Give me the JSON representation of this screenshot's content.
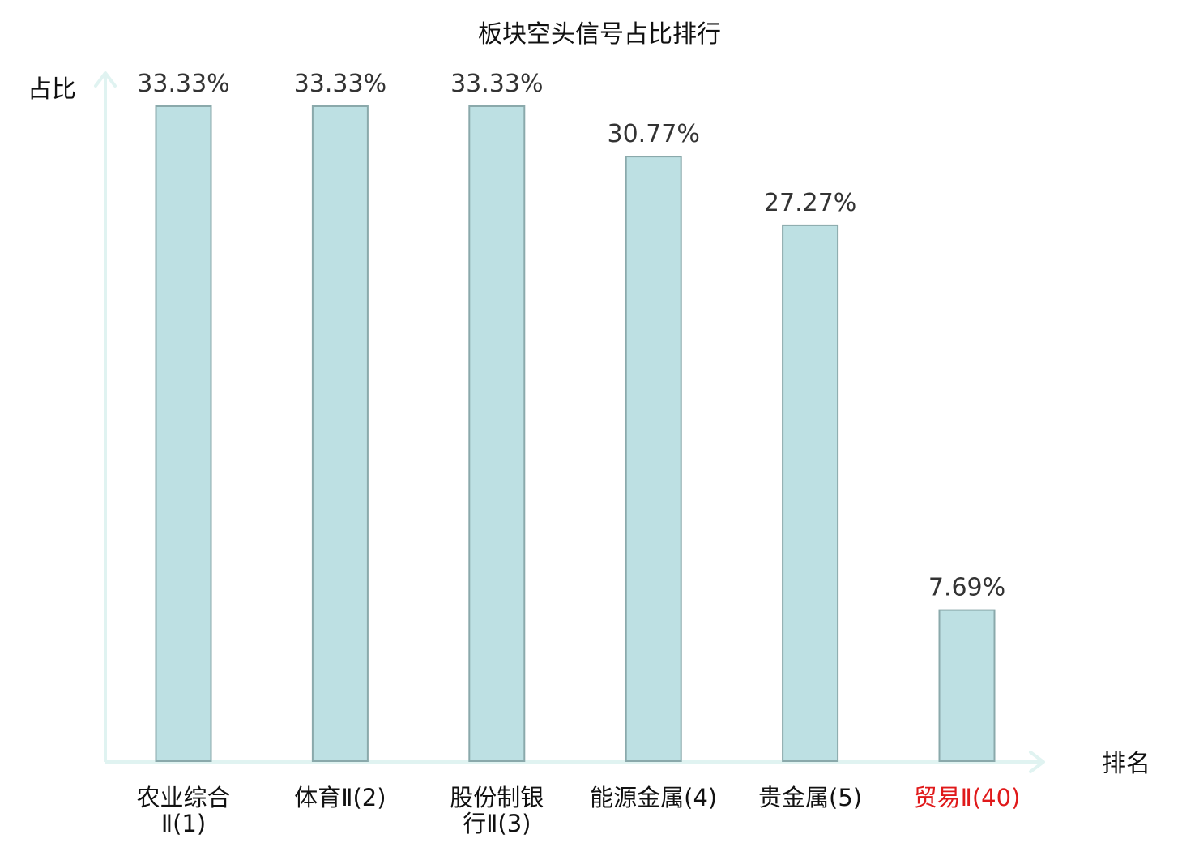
{
  "chart_data": {
    "type": "bar",
    "title": "板块空头信号占比排行",
    "xlabel": "排名",
    "ylabel": "占比",
    "categories": [
      [
        "农业综合",
        "Ⅱ(1)"
      ],
      [
        "体育Ⅱ(2)"
      ],
      [
        "股份制银",
        "行Ⅱ(3)"
      ],
      [
        "能源金属(4)"
      ],
      [
        "贵金属(5)"
      ],
      [
        "贸易Ⅱ(40)"
      ]
    ],
    "values": [
      33.33,
      33.33,
      33.33,
      30.77,
      27.27,
      7.69
    ],
    "value_labels": [
      "33.33%",
      "33.33%",
      "33.33%",
      "30.77%",
      "27.27%",
      "7.69%"
    ],
    "highlight_index": 5,
    "ylim": [
      0,
      33.33
    ],
    "grid": false,
    "legend": "none",
    "colors": {
      "bar_fill": "#bde0e3",
      "bar_stroke": "#8aa9ab",
      "axis": "#e0f3f1",
      "category_text": "#111111",
      "highlight_text": "#e0191a"
    }
  }
}
